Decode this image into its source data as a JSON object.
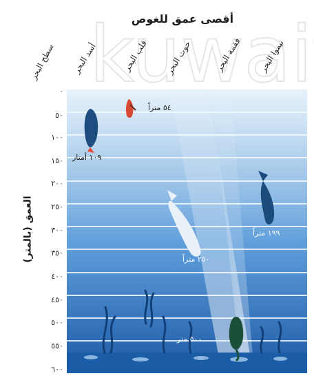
{
  "title": "أقصى عمق للغوص",
  "watermark": "kuwait",
  "surface_label": "سطح البحر",
  "y_axis_label": "العمق (بالمتر)",
  "y_ticks": [
    "٠",
    "٥٠",
    "١٠٠",
    "١٥٠",
    "٢٠٠",
    "٢٥٠",
    "٣٠٠",
    "٣٥٠",
    "٤٠٠",
    "٤٥٠",
    "٥٠٠",
    "٥٥٠",
    "٦٠٠"
  ],
  "columns": [
    "أسد البحر",
    "قلب البحر",
    "حوت البحر",
    "فقمة البحر",
    "نيموا البحر"
  ],
  "annotations": {
    "penguin": "٥٤ متراً",
    "seal": "١٠٩ أمتار",
    "dolphin": "١٩٩ متراً",
    "whale": "٢٥٠ متراً",
    "turtle": "٥٠٠ متر"
  },
  "colors": {
    "ocean_top": "#e7f2fb",
    "ocean_mid": "#5e9dda",
    "ocean_deep": "#1d5aa7",
    "grid": "#f5fbff"
  }
}
